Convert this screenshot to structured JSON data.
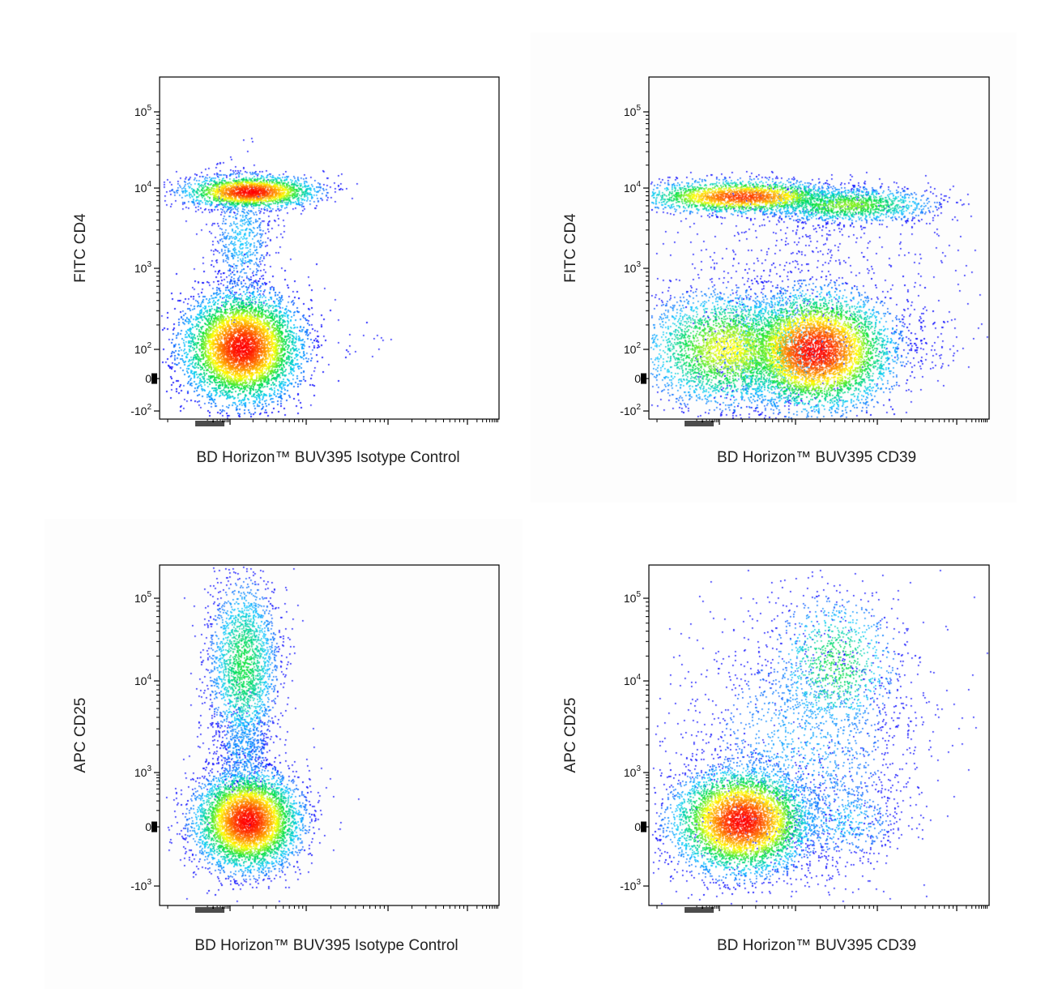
{
  "figure": {
    "panels": [
      {
        "xlabel": "BD Horizon™ BUV395 Isotype Control",
        "ylabel": "FITC CD4",
        "yticks": [
          {
            "base": "10",
            "exp": "5",
            "value": 100000
          },
          {
            "base": "10",
            "exp": "4",
            "value": 10000
          },
          {
            "base": "10",
            "exp": "3",
            "value": 1000
          },
          {
            "base": "10",
            "exp": "2",
            "value": 100
          },
          {
            "base": "0",
            "exp": "",
            "value": 0
          },
          {
            "base": "-10",
            "exp": "2",
            "value": -100
          }
        ]
      },
      {
        "xlabel": "BD Horizon™ BUV395 CD39",
        "ylabel": "FITC CD4",
        "yticks": [
          {
            "base": "10",
            "exp": "5",
            "value": 100000
          },
          {
            "base": "10",
            "exp": "4",
            "value": 10000
          },
          {
            "base": "10",
            "exp": "3",
            "value": 1000
          },
          {
            "base": "10",
            "exp": "2",
            "value": 100
          },
          {
            "base": "0",
            "exp": "",
            "value": 0
          },
          {
            "base": "-10",
            "exp": "2",
            "value": -100
          }
        ]
      },
      {
        "xlabel": "BD Horizon™ BUV395 Isotype Control",
        "ylabel": "APC CD25",
        "yticks": [
          {
            "base": "10",
            "exp": "5",
            "value": 100000
          },
          {
            "base": "10",
            "exp": "4",
            "value": 10000
          },
          {
            "base": "10",
            "exp": "3",
            "value": 1000
          },
          {
            "base": "0",
            "exp": "",
            "value": 0
          },
          {
            "base": "-10",
            "exp": "3",
            "value": -1000
          }
        ]
      },
      {
        "xlabel": "BD Horizon™ BUV395 CD39",
        "ylabel": "APC CD25",
        "yticks": [
          {
            "base": "10",
            "exp": "5",
            "value": 100000
          },
          {
            "base": "10",
            "exp": "4",
            "value": 10000
          },
          {
            "base": "10",
            "exp": "3",
            "value": 1000
          },
          {
            "base": "0",
            "exp": "",
            "value": 0
          },
          {
            "base": "-10",
            "exp": "3",
            "value": -1000
          }
        ]
      }
    ]
  },
  "chart_data": [
    {
      "type": "scatter",
      "title": "",
      "xlabel": "BD Horizon™ BUV395 Isotype Control",
      "ylabel": "FITC CD4",
      "x_scale": "biexponential",
      "y_scale": "biexponential",
      "colormap": [
        "#0000ff",
        "#00c8ff",
        "#00e040",
        "#ffff00",
        "#ff8000",
        "#ff0000"
      ],
      "populations": [
        {
          "name": "",
          "x_center": 150,
          "y_center": 8000,
          "relative_density": 0.35
        },
        {
          "name": "",
          "x_center": 120,
          "y_center": 100,
          "relative_density": 0.6
        }
      ]
    },
    {
      "type": "scatter",
      "title": "",
      "xlabel": "BD Horizon™ BUV395 CD39",
      "ylabel": "FITC CD4",
      "x_scale": "biexponential",
      "y_scale": "biexponential",
      "colormap": [
        "#0000ff",
        "#00c8ff",
        "#00e040",
        "#ffff00",
        "#ff8000",
        "#ff0000"
      ],
      "populations": [
        {
          "name": "",
          "x_center": 250,
          "y_center": 7000,
          "relative_density": 0.2
        },
        {
          "name": "",
          "x_center": 5000,
          "y_center": 6000,
          "relative_density": 0.12
        },
        {
          "name": "",
          "x_center": 2000,
          "y_center": 100,
          "relative_density": 0.4
        },
        {
          "name": "",
          "x_center": 300,
          "y_center": 100,
          "relative_density": 0.28
        }
      ]
    },
    {
      "type": "scatter",
      "title": "",
      "xlabel": "BD Horizon™ BUV395 Isotype Control",
      "ylabel": "APC CD25",
      "x_scale": "biexponential",
      "y_scale": "biexponential",
      "colormap": [
        "#0000ff",
        "#00c8ff",
        "#00e040",
        "#ffff00",
        "#ff8000",
        "#ff0000"
      ],
      "populations": [
        {
          "name": "",
          "x_center": 150,
          "y_center": 20000,
          "relative_density": 0.35
        },
        {
          "name": "",
          "x_center": 150,
          "y_center": 100,
          "relative_density": 0.65
        }
      ]
    },
    {
      "type": "scatter",
      "title": "",
      "xlabel": "BD Horizon™ BUV395 CD39",
      "ylabel": "APC CD25",
      "x_scale": "biexponential",
      "y_scale": "biexponential",
      "colormap": [
        "#0000ff",
        "#00c8ff",
        "#00e040",
        "#ffff00",
        "#ff8000",
        "#ff0000"
      ],
      "populations": [
        {
          "name": "",
          "x_center": 3000,
          "y_center": 20000,
          "relative_density": 0.25
        },
        {
          "name": "",
          "x_center": 300,
          "y_center": 100,
          "relative_density": 0.75
        }
      ]
    }
  ]
}
